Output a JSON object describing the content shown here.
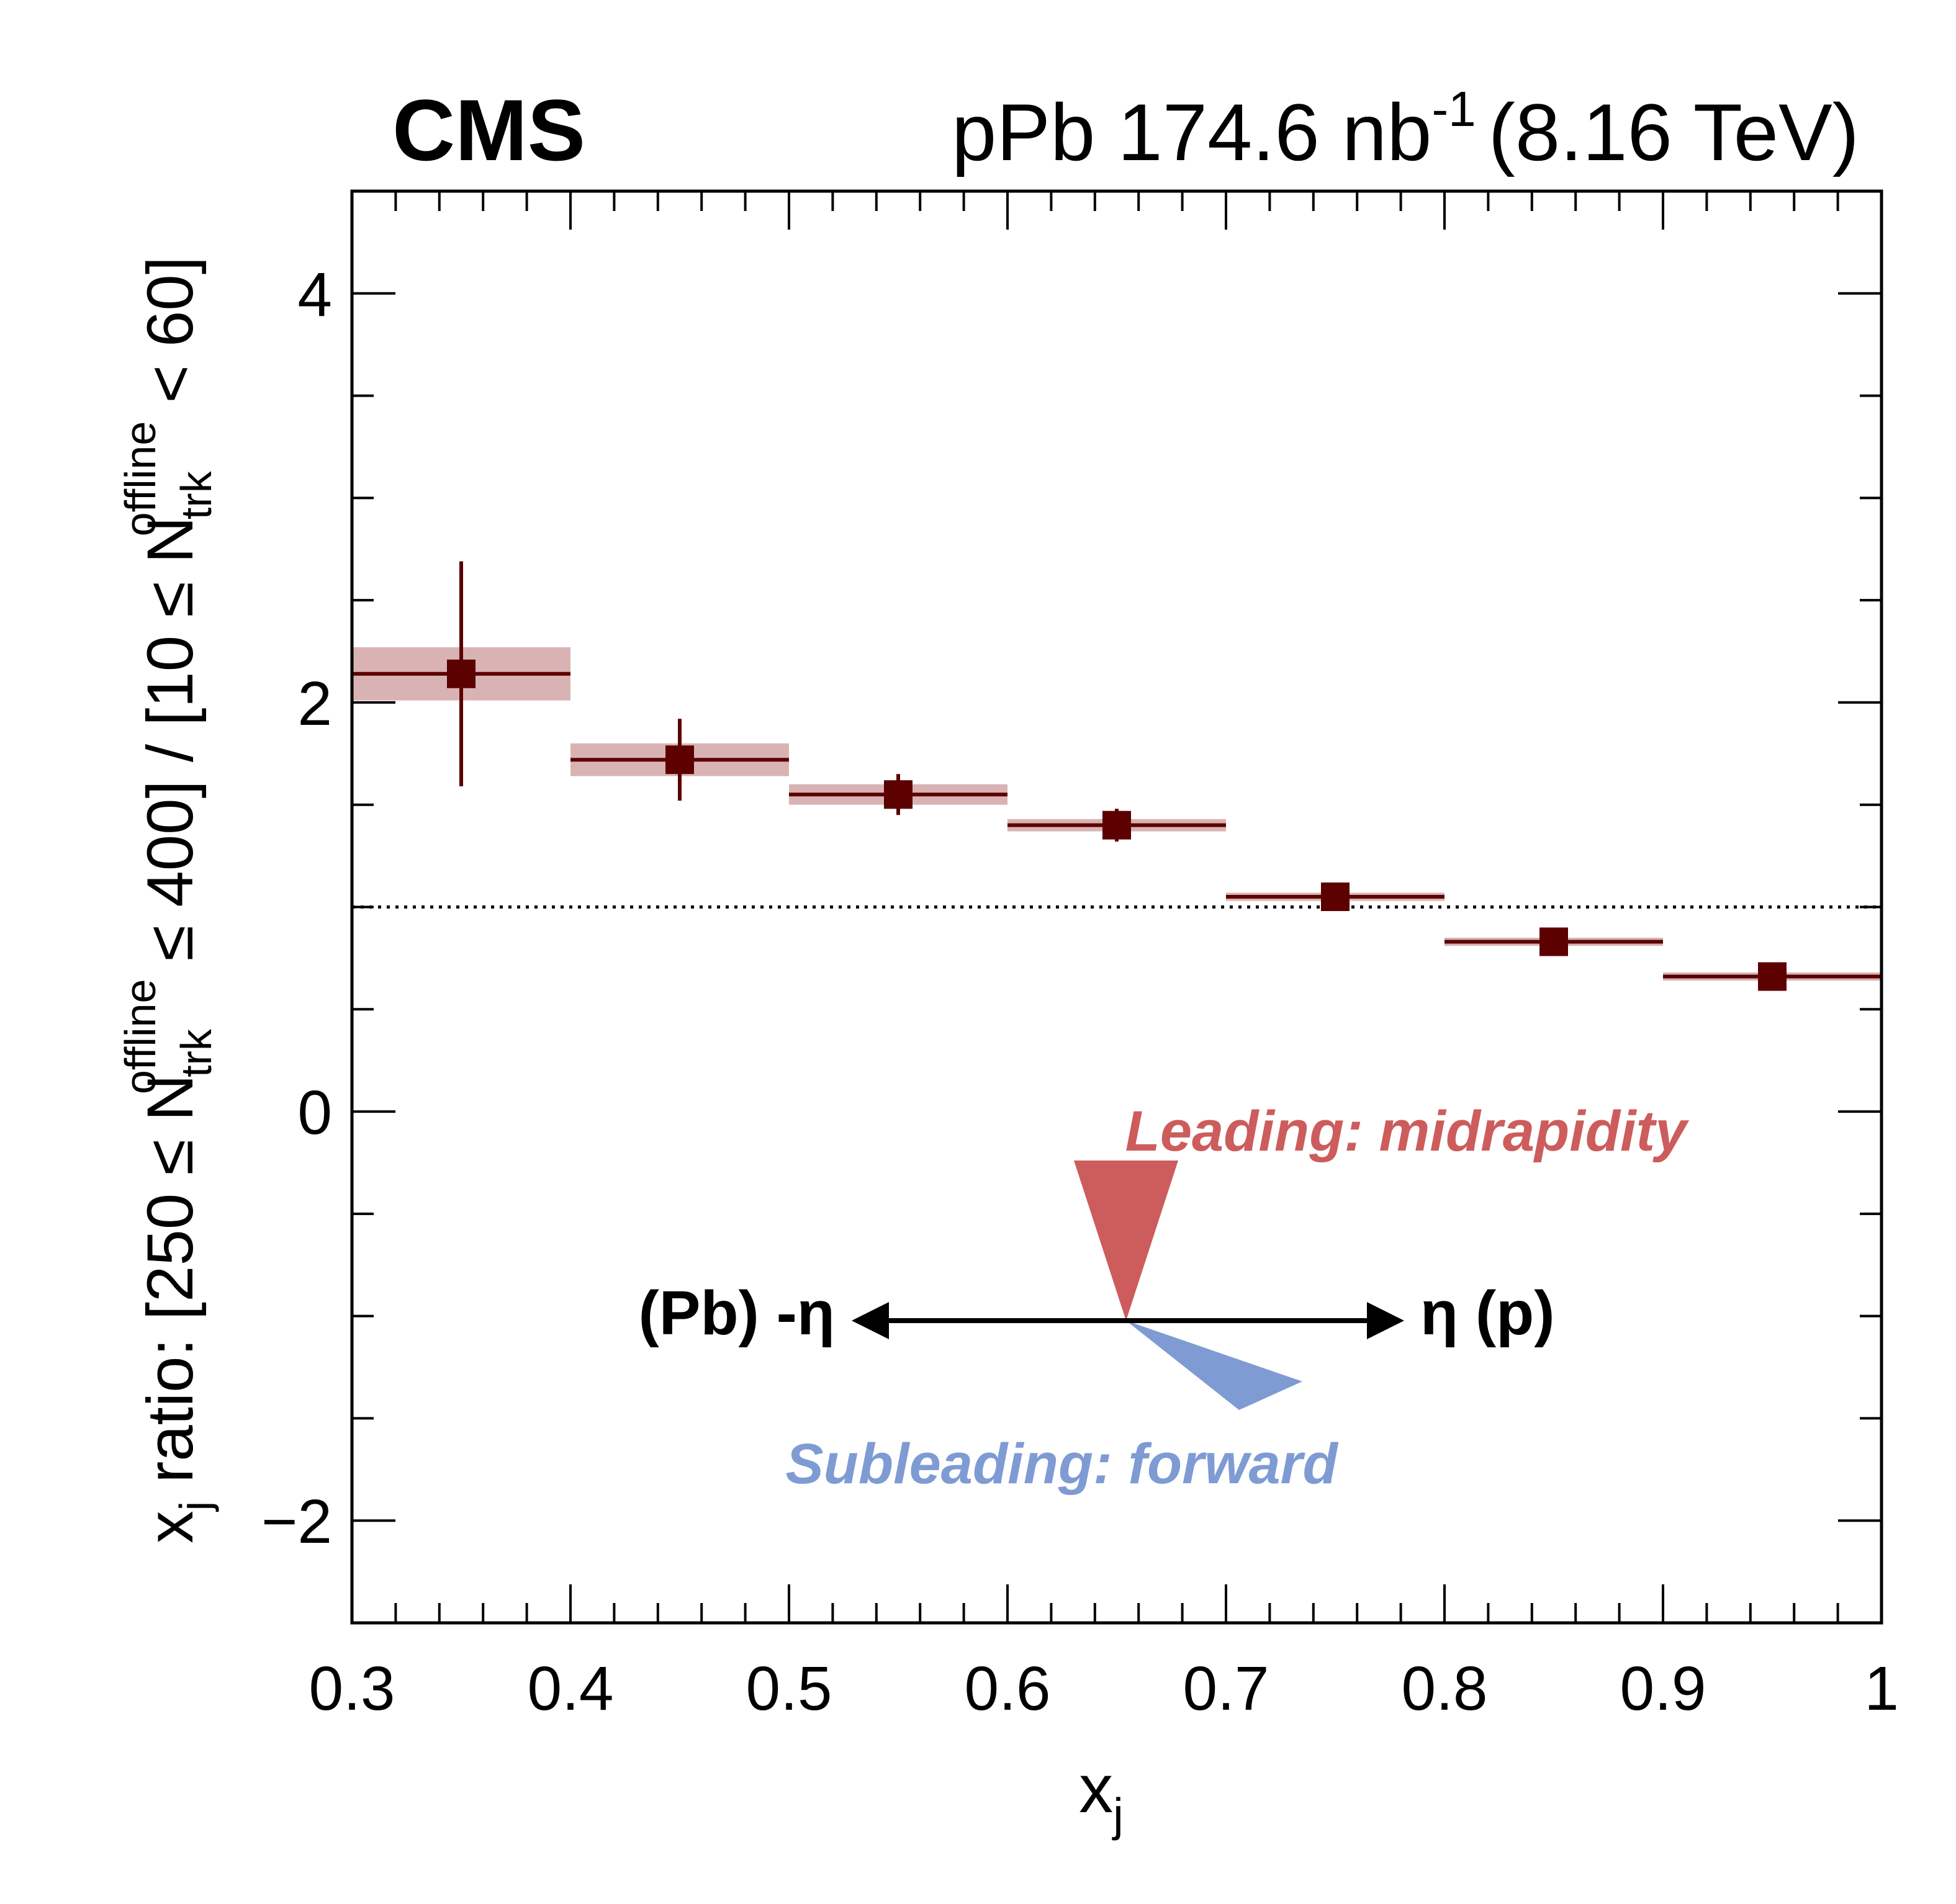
{
  "header": {
    "experiment": "CMS",
    "lumi_prefix": "pPb 174.6 nb",
    "lumi_exponent": "-1",
    "energy": "(8.16 TeV)"
  },
  "annotation": {
    "leading": "Leading: midrapidity",
    "subleading": "Subleading: forward",
    "left_label": "(Pb) -η",
    "right_label": "η (p)",
    "leading_color": "#cd5c5c",
    "subleading_color": "#7f9bd3"
  },
  "chart_data": {
    "type": "scatter",
    "xlabel": "x_j",
    "ylabel": "x_j ratio: [250 ≤ N_trk^offline ≤ 400] / [10 ≤ N_trk^offline < 60]",
    "xlim": [
      0.3,
      1.0
    ],
    "ylim": [
      -2.5,
      4.5
    ],
    "x_ticks": [
      "0.3",
      "0.4",
      "0.5",
      "0.6",
      "0.7",
      "0.8",
      "0.9",
      "1"
    ],
    "y_ticks": [
      "−2",
      "0",
      "2",
      "4"
    ],
    "reference_line": 1.0,
    "marker_color": "#5c0000",
    "syst_color": "#d9b3b3",
    "points": [
      {
        "x": 0.35,
        "y": 2.14,
        "xlow": 0.3,
        "xhigh": 0.4,
        "stat": 0.55,
        "syst": 0.13
      },
      {
        "x": 0.45,
        "y": 1.72,
        "xlow": 0.4,
        "xhigh": 0.5,
        "stat": 0.2,
        "syst": 0.08
      },
      {
        "x": 0.55,
        "y": 1.55,
        "xlow": 0.5,
        "xhigh": 0.6,
        "stat": 0.1,
        "syst": 0.05
      },
      {
        "x": 0.65,
        "y": 1.4,
        "xlow": 0.6,
        "xhigh": 0.7,
        "stat": 0.08,
        "syst": 0.03
      },
      {
        "x": 0.75,
        "y": 1.05,
        "xlow": 0.7,
        "xhigh": 0.8,
        "stat": 0.03,
        "syst": 0.02
      },
      {
        "x": 0.85,
        "y": 0.83,
        "xlow": 0.8,
        "xhigh": 0.9,
        "stat": 0.02,
        "syst": 0.02
      },
      {
        "x": 0.95,
        "y": 0.66,
        "xlow": 0.9,
        "xhigh": 1.0,
        "stat": 0.02,
        "syst": 0.02
      }
    ]
  }
}
